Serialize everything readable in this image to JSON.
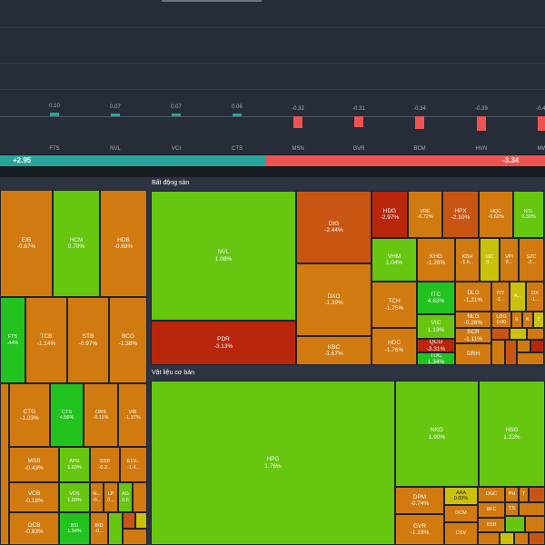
{
  "colors": {
    "up_strong": "#22c21f",
    "up": "#66c610",
    "flat": "#c9c209",
    "down_light": "#d17a10",
    "down": "#c85612",
    "down_strong": "#b8260b"
  },
  "bar_chart": {
    "bars": [
      {
        "ticker": "FTS",
        "value": "0.10"
      },
      {
        "ticker": "NVL",
        "value": "0.07"
      },
      {
        "ticker": "VCI",
        "value": "0.07"
      },
      {
        "ticker": "CTS",
        "value": "0.06"
      },
      {
        "ticker": "MSN",
        "value": "-0.32"
      },
      {
        "ticker": "GVR",
        "value": "-0.31"
      },
      {
        "ticker": "BCM",
        "value": "-0.34"
      },
      {
        "ticker": "HVN",
        "value": "-0.39"
      },
      {
        "ticker": "MW",
        "value": "-0.40"
      }
    ]
  },
  "breadth": {
    "up_label": "+2.95",
    "down_label": "-3.34"
  },
  "sectors": {
    "left": {
      "tiles": [
        {
          "ticker": "EIB",
          "change": "-0.87%"
        },
        {
          "ticker": "HCM",
          "change": "0.78%"
        },
        {
          "ticker": "HDB",
          "change": "-0.68%"
        },
        {
          "ticker": "FTS",
          "change": ".44%"
        },
        {
          "ticker": "TCB",
          "change": "-1.14%"
        },
        {
          "ticker": "STB",
          "change": "-0.97%"
        },
        {
          "ticker": "BCG",
          "change": "-1.38%"
        },
        {
          "ticker": "CTG",
          "change": "-1.03%"
        },
        {
          "ticker": "CTS",
          "change": "4.56%"
        },
        {
          "ticker": "ORS",
          "change": "-0.11%"
        },
        {
          "ticker": "VIB",
          "change": "-1.37%"
        },
        {
          "ticker": "MSB",
          "change": "-0.43%"
        },
        {
          "ticker": "APG",
          "change": "1.69%"
        },
        {
          "ticker": "SSB",
          "change": "-0.2..."
        },
        {
          "ticker": "E1V...",
          "change": "-1.4..."
        },
        {
          "ticker": "VCB",
          "change": "-0.18%"
        },
        {
          "ticker": "VDS",
          "change": "1.00%"
        },
        {
          "ticker": "N...",
          "change": "-0..."
        },
        {
          "ticker": "LP",
          "change": "0..."
        },
        {
          "ticker": "AG",
          "change": "0.6"
        },
        {
          "ticker": "OCB",
          "change": "-0.93%"
        },
        {
          "ticker": "BSI",
          "change": "1.94%"
        },
        {
          "ticker": "BID",
          "change": "-0..."
        }
      ]
    },
    "real_estate": {
      "title": "Bất động sản",
      "tiles": [
        {
          "ticker": "NVL",
          "change": "1.08%"
        },
        {
          "ticker": "DIG",
          "change": "-2.44%"
        },
        {
          "ticker": "HDG",
          "change": "-2.97%"
        },
        {
          "ticker": "VRE",
          "change": "-0.72%"
        },
        {
          "ticker": "HPX",
          "change": "-2.10%"
        },
        {
          "ticker": "HQC",
          "change": "-0.62%"
        },
        {
          "ticker": "NTL",
          "change": "0.30%"
        },
        {
          "ticker": "VHM",
          "change": "1.04%"
        },
        {
          "ticker": "KHG",
          "change": "-1.28%"
        },
        {
          "ticker": "KDH",
          "change": "-1.6..."
        },
        {
          "ticker": "IJC",
          "change": "0..."
        },
        {
          "ticker": "VPI",
          "change": "0..."
        },
        {
          "ticker": "SZC",
          "change": "-2..."
        },
        {
          "ticker": "DXG",
          "change": "-1.39%"
        },
        {
          "ticker": "TCH",
          "change": "-1.75%"
        },
        {
          "ticker": "ITC",
          "change": "4.63%"
        },
        {
          "ticker": "DLG",
          "change": "-1.21%"
        },
        {
          "ticker": "FIT",
          "change": "-1..."
        },
        {
          "ticker": "A...",
          "change": ""
        },
        {
          "ticker": "DX",
          "change": "-1..."
        },
        {
          "ticker": "NLG",
          "change": "-0.26%"
        },
        {
          "ticker": "LDG",
          "change": "0.00"
        },
        {
          "ticker": "E",
          "change": ""
        },
        {
          "ticker": "K",
          "change": ""
        },
        {
          "ticker": "T",
          "change": ""
        },
        {
          "ticker": "VIC",
          "change": "1.13%"
        },
        {
          "ticker": "SCR",
          "change": "-1.11%"
        },
        {
          "ticker": "PDR",
          "change": "-3.13%"
        },
        {
          "ticker": "KBC",
          "change": "-1.67%"
        },
        {
          "ticker": "HDC",
          "change": "-1.76%"
        },
        {
          "ticker": "QCG",
          "change": "-3.31%"
        },
        {
          "ticker": "TDC",
          "change": "1.34%"
        },
        {
          "ticker": "DRH",
          "change": ""
        }
      ]
    },
    "materials": {
      "title": "Vật liệu cơ bản",
      "tiles": [
        {
          "ticker": "HPG",
          "change": "1.76%"
        },
        {
          "ticker": "NKG",
          "change": "1.90%"
        },
        {
          "ticker": "HSG",
          "change": "1.23%"
        },
        {
          "ticker": "DPM",
          "change": "-0.74%"
        },
        {
          "ticker": "AAA",
          "change": "0.00%"
        },
        {
          "ticker": "DGC",
          "change": ""
        },
        {
          "ticker": "PH",
          "change": ""
        },
        {
          "ticker": "T",
          "change": ""
        },
        {
          "ticker": "DCM",
          "change": ""
        },
        {
          "ticker": "BFC",
          "change": ""
        },
        {
          "ticker": "TS",
          "change": ""
        },
        {
          "ticker": "GVR",
          "change": "-1.19%"
        },
        {
          "ticker": "CSV",
          "change": ""
        },
        {
          "ticker": "KSB",
          "change": ""
        }
      ]
    }
  }
}
